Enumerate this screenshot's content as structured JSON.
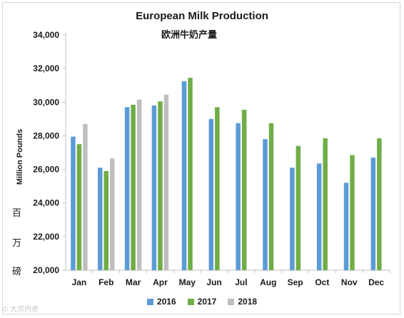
{
  "chart_data": {
    "type": "bar",
    "title": "European Milk Production",
    "subtitle": "欧洲牛奶产量",
    "ylabel": "Million Pounds",
    "ylabel_cn": [
      "百",
      "万",
      "磅"
    ],
    "ylim": [
      20000,
      34000
    ],
    "yticks": [
      20000,
      22000,
      24000,
      26000,
      28000,
      30000,
      32000,
      34000
    ],
    "ytick_labels": [
      "20,000",
      "22,000",
      "24,000",
      "26,000",
      "28,000",
      "30,000",
      "32,000",
      "34,000"
    ],
    "grid": false,
    "legend_position": "bottom",
    "categories": [
      "Jan",
      "Feb",
      "Mar",
      "Apr",
      "May",
      "Jun",
      "Jul",
      "Aug",
      "Sep",
      "Oct",
      "Nov",
      "Dec"
    ],
    "series": [
      {
        "name": "2016",
        "color": "#5b9bd5",
        "values": [
          27950,
          26100,
          29700,
          29800,
          31250,
          29000,
          28750,
          27800,
          26100,
          26350,
          25200,
          26700
        ]
      },
      {
        "name": "2017",
        "color": "#70ad47",
        "values": [
          27500,
          25900,
          29850,
          30050,
          31450,
          29700,
          29550,
          28750,
          27400,
          27850,
          26850,
          27850
        ]
      },
      {
        "name": "2018",
        "color": "#bfbfbf",
        "values": [
          28700,
          26650,
          30150,
          30450,
          null,
          null,
          null,
          null,
          null,
          null,
          null,
          null
        ]
      }
    ]
  },
  "watermark": "© 大宗内参"
}
